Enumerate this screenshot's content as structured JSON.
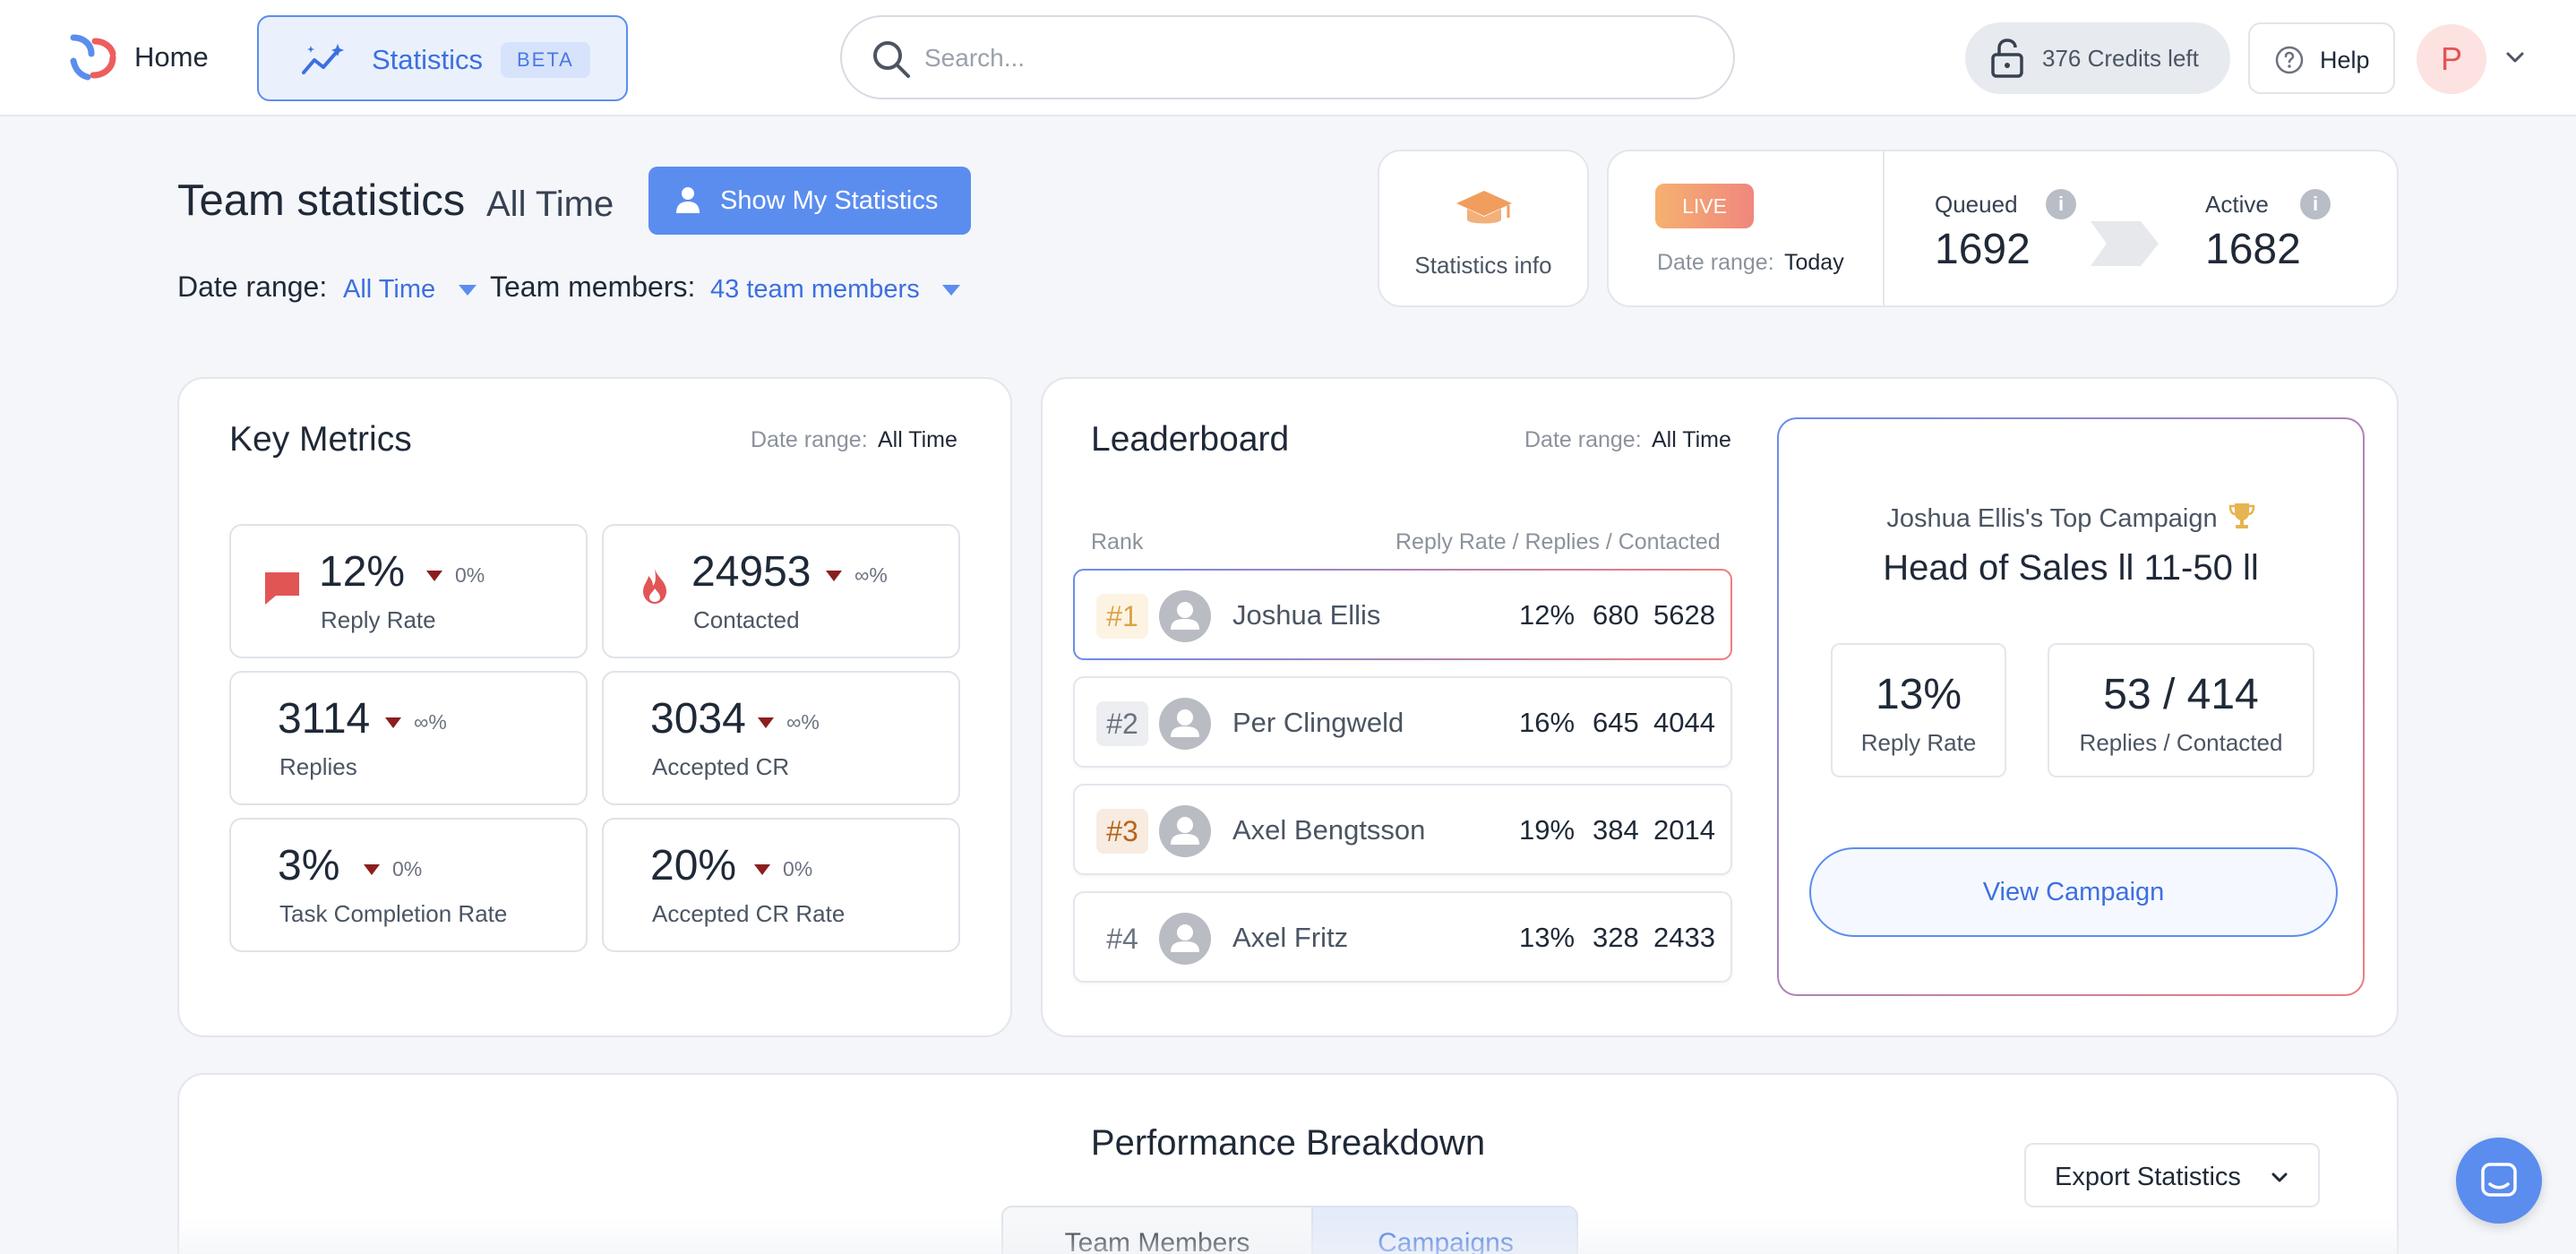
{
  "nav": {
    "home_label": "Home",
    "statistics_label": "Statistics",
    "beta_badge": "BETA",
    "search_placeholder": "Search...",
    "credits_label": "376 Credits left",
    "help_label": "Help",
    "avatar_initial": "P"
  },
  "header": {
    "title": "Team statistics",
    "title_range": "All Time",
    "show_my_stats": "Show My Statistics",
    "date_range_label": "Date range:",
    "date_range_value": "All Time",
    "team_members_label": "Team members:",
    "team_members_value": "43 team members"
  },
  "info_card": {
    "label": "Statistics info"
  },
  "live": {
    "badge": "LIVE",
    "date_range_label": "Date range:",
    "date_range_value": "Today",
    "queued_label": "Queued",
    "queued_value": "1692",
    "active_label": "Active",
    "active_value": "1682",
    "info_glyph": "i"
  },
  "key_metrics": {
    "title": "Key Metrics",
    "date_range_label": "Date range:",
    "date_range_value": "All Time",
    "metrics": [
      {
        "value": "12%",
        "change": "0%",
        "label": "Reply Rate",
        "icon": "chat-icon"
      },
      {
        "value": "24953",
        "change": "∞%",
        "label": "Contacted",
        "icon": "fire-icon"
      },
      {
        "value": "3114",
        "change": "∞%",
        "label": "Replies"
      },
      {
        "value": "3034",
        "change": "∞%",
        "label": "Accepted CR"
      },
      {
        "value": "3%",
        "change": "0%",
        "label": "Task Completion Rate"
      },
      {
        "value": "20%",
        "change": "0%",
        "label": "Accepted CR Rate"
      }
    ],
    "down_color": "#8b1e1e"
  },
  "leaderboard": {
    "title": "Leaderboard",
    "date_range_label": "Date range:",
    "date_range_value": "All Time",
    "rank_header": "Rank",
    "cols_header": "Reply Rate / Replies / Contacted",
    "rows": [
      {
        "rank": "#1",
        "name": "Joshua Ellis",
        "reply_rate": "12%",
        "replies": "680",
        "contacted": "5628"
      },
      {
        "rank": "#2",
        "name": "Per Clingweld",
        "reply_rate": "16%",
        "replies": "645",
        "contacted": "4044"
      },
      {
        "rank": "#3",
        "name": "Axel Bengtsson",
        "reply_rate": "19%",
        "replies": "384",
        "contacted": "2014"
      },
      {
        "rank": "#4",
        "name": "Axel Fritz",
        "reply_rate": "13%",
        "replies": "328",
        "contacted": "2433"
      }
    ]
  },
  "top_campaign": {
    "subtitle": "Joshua Ellis's Top Campaign",
    "title": "Head of Sales ll 11-50 ll",
    "reply_rate_value": "13%",
    "reply_rate_label": "Reply Rate",
    "replies_value": "53 / 414",
    "replies_label": "Replies / Contacted",
    "view_button": "View Campaign"
  },
  "performance": {
    "title": "Performance Breakdown",
    "export_label": "Export Statistics",
    "tabs": [
      "Team Members",
      "Campaigns"
    ]
  },
  "colors": {
    "accent": "#5b8def",
    "gold": "#d9a441",
    "bronze": "#b5651d",
    "red": "#e25555"
  }
}
